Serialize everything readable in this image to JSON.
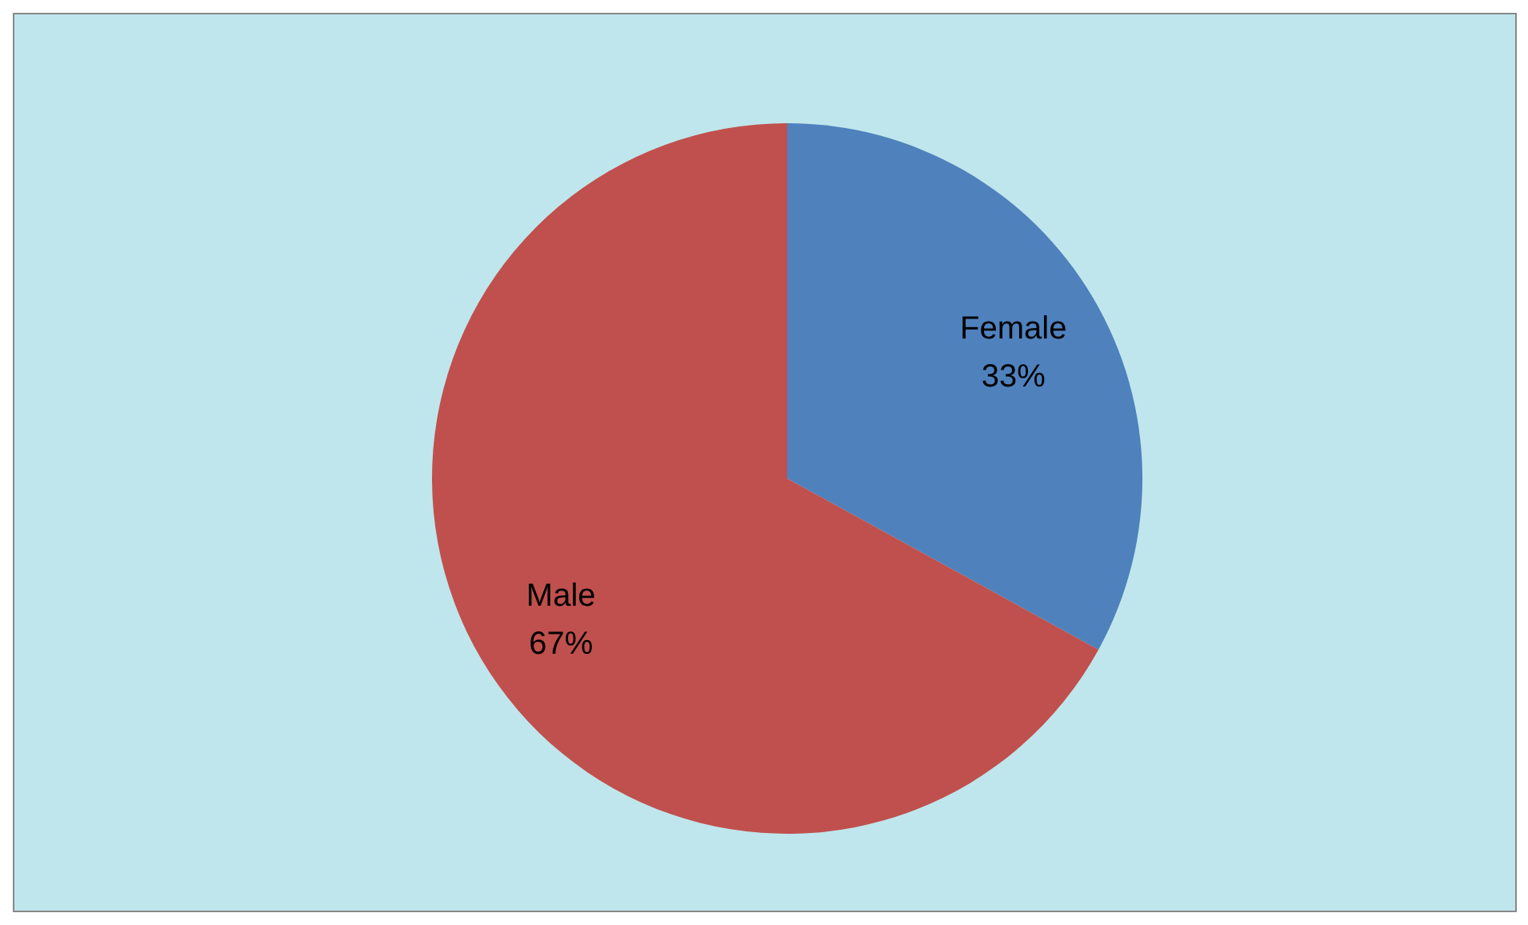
{
  "chart_data": {
    "type": "pie",
    "categories": [
      "Female",
      "Male"
    ],
    "values": [
      33,
      67
    ],
    "value_labels": [
      "33%",
      "67%"
    ],
    "colors": [
      "#4f81bd",
      "#c0504d"
    ],
    "legend": false
  }
}
